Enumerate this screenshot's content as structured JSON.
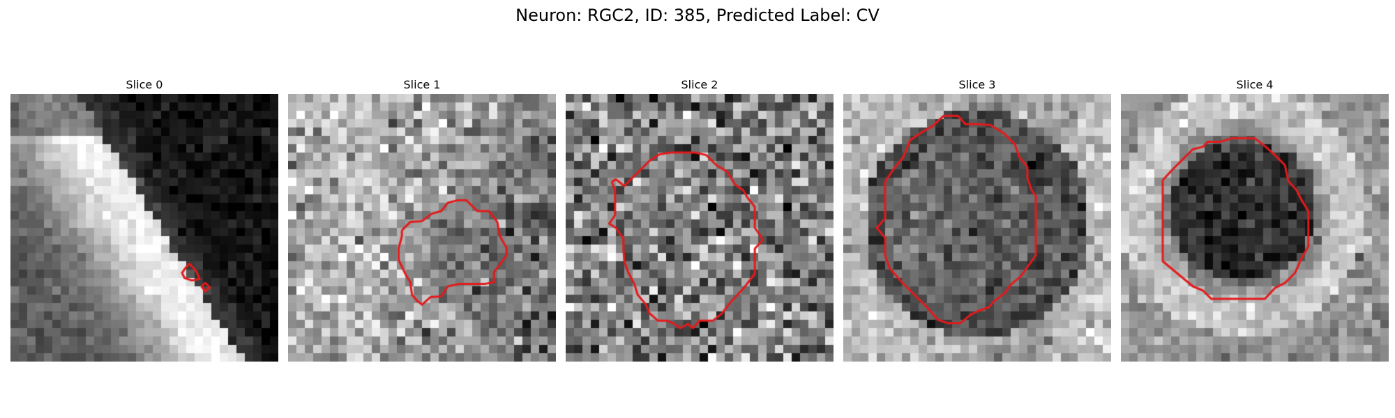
{
  "figure": {
    "title": "Neuron: RGC2, ID: 385, Predicted Label: CV"
  },
  "colors": {
    "contour": "#e41a1c",
    "background": "#ffffff"
  },
  "slices": [
    {
      "title": "Slice 0"
    },
    {
      "title": "Slice 1"
    },
    {
      "title": "Slice 2"
    },
    {
      "title": "Slice 3"
    },
    {
      "title": "Slice 4"
    }
  ]
}
